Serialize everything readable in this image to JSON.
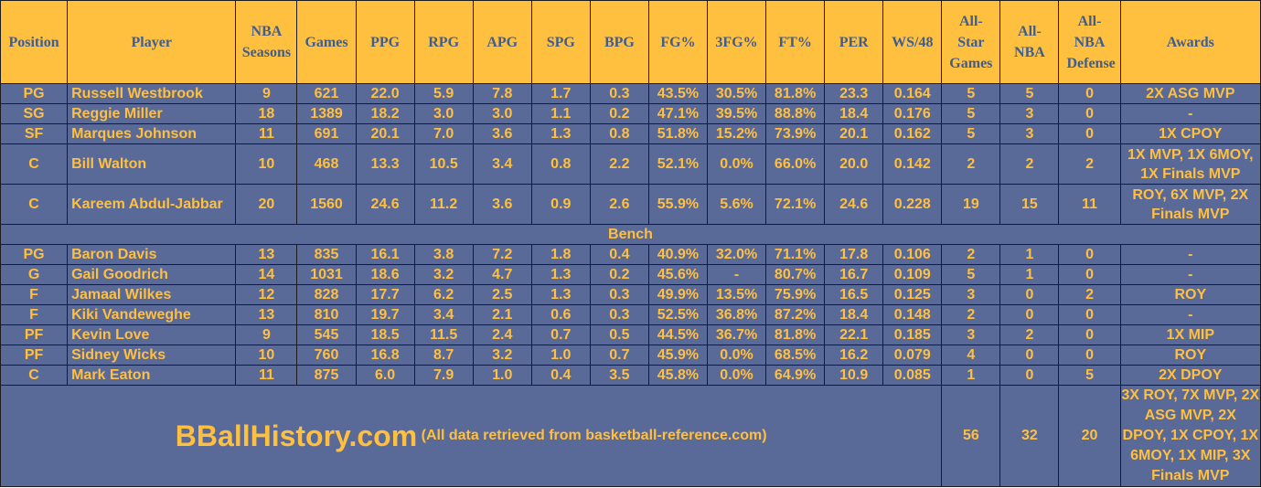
{
  "headers": {
    "position": "Position",
    "player": "Player",
    "seasons": "NBA Seasons",
    "games": "Games",
    "ppg": "PPG",
    "rpg": "RPG",
    "apg": "APG",
    "spg": "SPG",
    "bpg": "BPG",
    "fg": "FG%",
    "fg3": "3FG%",
    "ft": "FT%",
    "per": "PER",
    "ws48": "WS/48",
    "allstar": "All-Star Games",
    "allnba": "All-NBA",
    "alldef": "All-NBA Defense",
    "awards": "Awards"
  },
  "starters": [
    {
      "pos": "PG",
      "player": "Russell Westbrook",
      "seasons": "9",
      "games": "621",
      "ppg": "22.0",
      "rpg": "5.9",
      "apg": "7.8",
      "spg": "1.7",
      "bpg": "0.3",
      "fg": "43.5%",
      "fg3": "30.5%",
      "ft": "81.8%",
      "per": "23.3",
      "ws48": "0.164",
      "allstar": "5",
      "allnba": "5",
      "alldef": "0",
      "awards": "2X ASG MVP"
    },
    {
      "pos": "SG",
      "player": "Reggie Miller",
      "seasons": "18",
      "games": "1389",
      "ppg": "18.2",
      "rpg": "3.0",
      "apg": "3.0",
      "spg": "1.1",
      "bpg": "0.2",
      "fg": "47.1%",
      "fg3": "39.5%",
      "ft": "88.8%",
      "per": "18.4",
      "ws48": "0.176",
      "allstar": "5",
      "allnba": "3",
      "alldef": "0",
      "awards": "-"
    },
    {
      "pos": "SF",
      "player": "Marques Johnson",
      "seasons": "11",
      "games": "691",
      "ppg": "20.1",
      "rpg": "7.0",
      "apg": "3.6",
      "spg": "1.3",
      "bpg": "0.8",
      "fg": "51.8%",
      "fg3": "15.2%",
      "ft": "73.9%",
      "per": "20.1",
      "ws48": "0.162",
      "allstar": "5",
      "allnba": "3",
      "alldef": "0",
      "awards": "1X CPOY"
    },
    {
      "pos": "C",
      "player": "Bill Walton",
      "seasons": "10",
      "games": "468",
      "ppg": "13.3",
      "rpg": "10.5",
      "apg": "3.4",
      "spg": "0.8",
      "bpg": "2.2",
      "fg": "52.1%",
      "fg3": "0.0%",
      "ft": "66.0%",
      "per": "20.0",
      "ws48": "0.142",
      "allstar": "2",
      "allnba": "2",
      "alldef": "2",
      "awards": "1X MVP, 1X 6MOY, 1X Finals MVP"
    },
    {
      "pos": "C",
      "player": "Kareem Abdul-Jabbar",
      "seasons": "20",
      "games": "1560",
      "ppg": "24.6",
      "rpg": "11.2",
      "apg": "3.6",
      "spg": "0.9",
      "bpg": "2.6",
      "fg": "55.9%",
      "fg3": "5.6%",
      "ft": "72.1%",
      "per": "24.6",
      "ws48": "0.228",
      "allstar": "19",
      "allnba": "15",
      "alldef": "11",
      "awards": "ROY, 6X MVP, 2X Finals MVP"
    }
  ],
  "bench_label": "Bench",
  "bench": [
    {
      "pos": "PG",
      "player": "Baron Davis",
      "seasons": "13",
      "games": "835",
      "ppg": "16.1",
      "rpg": "3.8",
      "apg": "7.2",
      "spg": "1.8",
      "bpg": "0.4",
      "fg": "40.9%",
      "fg3": "32.0%",
      "ft": "71.1%",
      "per": "17.8",
      "ws48": "0.106",
      "allstar": "2",
      "allnba": "1",
      "alldef": "0",
      "awards": "-"
    },
    {
      "pos": "G",
      "player": "Gail Goodrich",
      "seasons": "14",
      "games": "1031",
      "ppg": "18.6",
      "rpg": "3.2",
      "apg": "4.7",
      "spg": "1.3",
      "bpg": "0.2",
      "fg": "45.6%",
      "fg3": "-",
      "ft": "80.7%",
      "per": "16.7",
      "ws48": "0.109",
      "allstar": "5",
      "allnba": "1",
      "alldef": "0",
      "awards": "-"
    },
    {
      "pos": "F",
      "player": "Jamaal Wilkes",
      "seasons": "12",
      "games": "828",
      "ppg": "17.7",
      "rpg": "6.2",
      "apg": "2.5",
      "spg": "1.3",
      "bpg": "0.3",
      "fg": "49.9%",
      "fg3": "13.5%",
      "ft": "75.9%",
      "per": "16.5",
      "ws48": "0.125",
      "allstar": "3",
      "allnba": "0",
      "alldef": "2",
      "awards": "ROY"
    },
    {
      "pos": "F",
      "player": "Kiki Vandeweghe",
      "seasons": "13",
      "games": "810",
      "ppg": "19.7",
      "rpg": "3.4",
      "apg": "2.1",
      "spg": "0.6",
      "bpg": "0.3",
      "fg": "52.5%",
      "fg3": "36.8%",
      "ft": "87.2%",
      "per": "18.4",
      "ws48": "0.148",
      "allstar": "2",
      "allnba": "0",
      "alldef": "0",
      "awards": "-"
    },
    {
      "pos": "PF",
      "player": "Kevin Love",
      "seasons": "9",
      "games": "545",
      "ppg": "18.5",
      "rpg": "11.5",
      "apg": "2.4",
      "spg": "0.7",
      "bpg": "0.5",
      "fg": "44.5%",
      "fg3": "36.7%",
      "ft": "81.8%",
      "per": "22.1",
      "ws48": "0.185",
      "allstar": "3",
      "allnba": "2",
      "alldef": "0",
      "awards": "1X MIP"
    },
    {
      "pos": "PF",
      "player": "Sidney Wicks",
      "seasons": "10",
      "games": "760",
      "ppg": "16.8",
      "rpg": "8.7",
      "apg": "3.2",
      "spg": "1.0",
      "bpg": "0.7",
      "fg": "45.9%",
      "fg3": "0.0%",
      "ft": "68.5%",
      "per": "16.2",
      "ws48": "0.079",
      "allstar": "4",
      "allnba": "0",
      "alldef": "0",
      "awards": "ROY"
    },
    {
      "pos": "C",
      "player": "Mark Eaton",
      "seasons": "11",
      "games": "875",
      "ppg": "6.0",
      "rpg": "7.9",
      "apg": "1.0",
      "spg": "0.4",
      "bpg": "3.5",
      "fg": "45.8%",
      "fg3": "0.0%",
      "ft": "64.9%",
      "per": "10.9",
      "ws48": "0.085",
      "allstar": "1",
      "allnba": "0",
      "alldef": "5",
      "awards": "2X DPOY"
    }
  ],
  "footer": {
    "brand": "BBallHistory.com",
    "source": "(All data retrieved from basketball-reference.com)",
    "allstar_total": "56",
    "allnba_total": "32",
    "alldef_total": "20",
    "awards_total": "3X ROY, 7X MVP, 2X ASG MVP, 2X DPOY, 1X CPOY, 1X 6MOY, 1X MIP, 3X Finals MVP"
  }
}
